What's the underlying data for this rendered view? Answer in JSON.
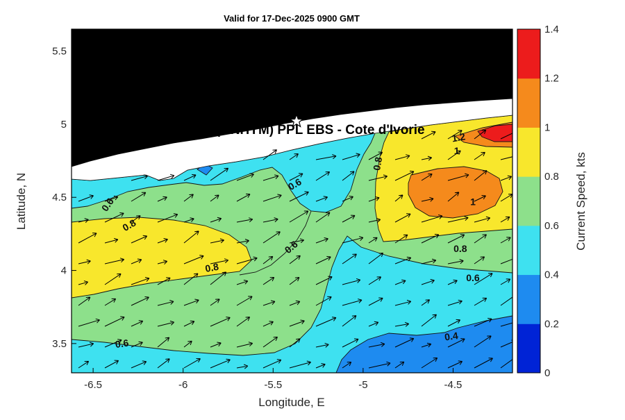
{
  "figure": {
    "title": "Valid for 17-Dec-2025 0900 GMT"
  },
  "chart_data": {
    "type": "heatmap",
    "title": "Valid for 17-Dec-2025 0900 GMT",
    "overlay_title": "A (ONHYM) PPL EBS  - Cote d'Ivorie",
    "xlabel": "Longitude, E",
    "ylabel": "Latitude, N",
    "xlim": [
      -6.62,
      -4.17
    ],
    "ylim": [
      3.3,
      5.65
    ],
    "x_ticks": [
      "-6.5",
      "-6",
      "-5.5",
      "-5",
      "-4.5"
    ],
    "x_tick_values": [
      -6.5,
      -6,
      -5.5,
      -5,
      -4.5
    ],
    "y_ticks": [
      "5.5",
      "5",
      "4.5",
      "4",
      "3.5"
    ],
    "y_tick_values": [
      5.5,
      5,
      4.5,
      4,
      3.5
    ],
    "grid": false,
    "colorbar": {
      "label": "Current Speed, kts",
      "tick_labels": [
        "0",
        "0.2",
        "0.4",
        "0.6",
        "0.8",
        "1",
        "1.2",
        "1.4"
      ],
      "tick_values": [
        0,
        0.2,
        0.4,
        0.6,
        0.8,
        1,
        1.2,
        1.4
      ],
      "vmax": 1.4,
      "segment_colors": [
        "#0023d6",
        "#1e8bf0",
        "#3ee1f0",
        "#8de08b",
        "#f8e72c",
        "#f58a1c",
        "#ec1c1c"
      ]
    },
    "contour_levels": [
      0.4,
      0.6,
      0.8,
      1,
      1.2
    ],
    "contour_labels": [
      {
        "text": "0.6",
        "lon": -5.38,
        "lat": 4.59,
        "rot": 30
      },
      {
        "text": "0.8",
        "lon": -4.92,
        "lat": 4.73,
        "rot": 80
      },
      {
        "text": "0.6",
        "lon": -6.42,
        "lat": 4.45,
        "rot": 55
      },
      {
        "text": "0.8",
        "lon": -6.3,
        "lat": 4.31,
        "rot": 30
      },
      {
        "text": "1.2",
        "lon": -4.47,
        "lat": 4.91,
        "rot": 10
      },
      {
        "text": "1",
        "lon": -4.48,
        "lat": 4.82,
        "rot": 0
      },
      {
        "text": "1",
        "lon": -4.39,
        "lat": 4.47,
        "rot": 0
      },
      {
        "text": "0.6",
        "lon": -5.4,
        "lat": 4.16,
        "rot": 40
      },
      {
        "text": "0.8",
        "lon": -4.46,
        "lat": 4.15,
        "rot": 0
      },
      {
        "text": "0.8",
        "lon": -5.84,
        "lat": 4.02,
        "rot": 10
      },
      {
        "text": "0.6",
        "lon": -4.39,
        "lat": 3.95,
        "rot": 0
      },
      {
        "text": "0.6",
        "lon": -6.34,
        "lat": 3.5,
        "rot": 8
      },
      {
        "text": "0.4",
        "lon": -4.51,
        "lat": 3.55,
        "rot": 8
      }
    ],
    "marker": {
      "type": "star",
      "lon": -5.37,
      "lat": 5.02
    },
    "quiver": {
      "cols": 17,
      "rows": 12,
      "color": "#000000"
    },
    "regions_legend": {
      "land": "black",
      "no_data_coastal_band": "white",
      "speed_bands_kts": [
        "0-0.2 dark blue",
        "0.2-0.4 blue",
        "0.4-0.6 cyan",
        "0.6-0.8 green",
        "0.8-1 yellow",
        "1-1.2 orange",
        "1.2-1.4 red"
      ]
    }
  },
  "palette": {
    "blue_dark": "#0023d6",
    "blue": "#1e8bf0",
    "cyan": "#3ee1f0",
    "green": "#8de08b",
    "yellow": "#f8e72c",
    "orange": "#f58a1c",
    "red": "#ec1c1c",
    "land": "#000000",
    "nodata": "#ffffff",
    "contour_line": "#141414",
    "frame": "#000000"
  }
}
